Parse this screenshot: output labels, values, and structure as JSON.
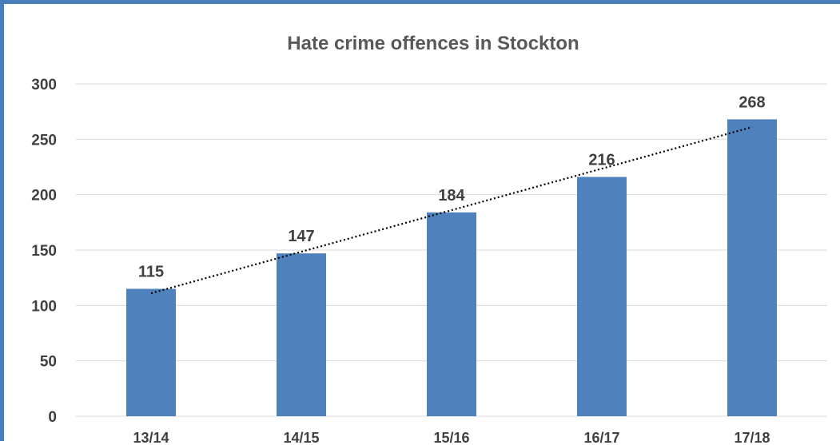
{
  "chart_data": {
    "type": "bar",
    "title": "Hate crime offences in Stockton",
    "xlabel": "",
    "ylabel": "",
    "categories": [
      "13/14",
      "14/15",
      "15/16",
      "16/17",
      "17/18"
    ],
    "values": [
      115,
      147,
      184,
      216,
      268
    ],
    "ylim": [
      0,
      300
    ],
    "yticks": [
      "0",
      "50",
      "100",
      "150",
      "200",
      "250",
      "300"
    ],
    "data_labels": [
      "115",
      "147",
      "184",
      "216",
      "268"
    ],
    "grid": true,
    "legend": "none",
    "trendline": "linear",
    "colors": {
      "bar": "#4f81bd",
      "frame": "#4a7ebb",
      "trendline": "#000000"
    }
  }
}
